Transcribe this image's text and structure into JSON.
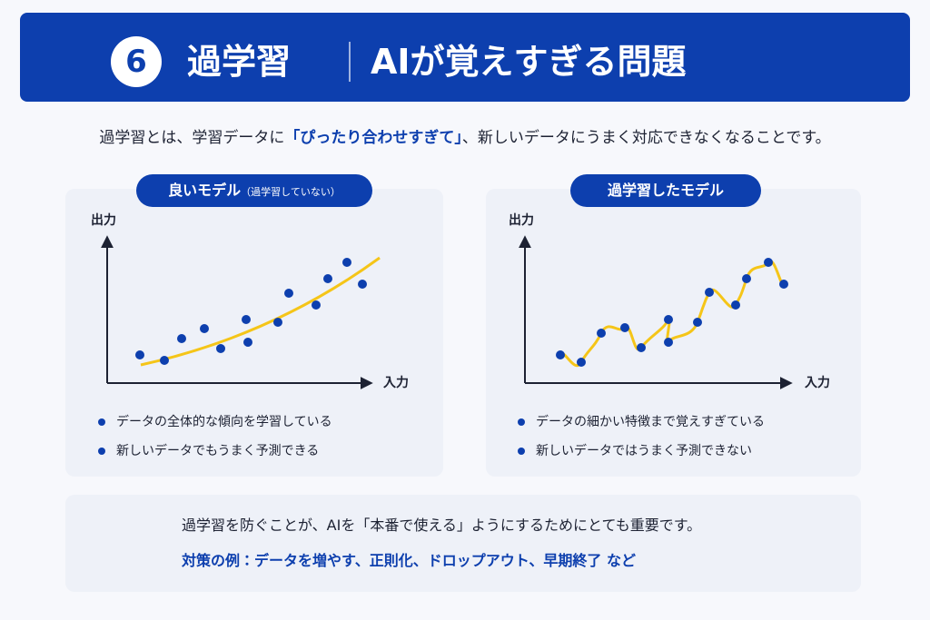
{
  "header": {
    "number": "6",
    "title": "過学習",
    "subtitle": "AIが覚えすぎる問題"
  },
  "intro": {
    "before": "過学習とは、学習データに",
    "highlight": "「ぴったり合わせすぎて」",
    "after": "、新しいデータにうまく対応できなくなることです。"
  },
  "panels": [
    {
      "label": "良いモデル",
      "sublabel": "（過学習していない）",
      "y_label": "出力",
      "x_label": "入力",
      "bullets": [
        "データの全体的な傾向を学習している",
        "新しいデータでもうまく予測できる"
      ]
    },
    {
      "label": "過学習したモデル",
      "y_label": "出力",
      "x_label": "入力",
      "bullets": [
        "データの細かい特徴まで覚えすぎている",
        "新しいデータではうまく予測できない"
      ]
    }
  ],
  "footer": {
    "main": "過学習を防ぐことが、AIを「本番で使える」ようにするためにとても重要です。",
    "example": "対策の例：データを増やす、正則化、ドロップアウト、早期終了 など"
  }
}
